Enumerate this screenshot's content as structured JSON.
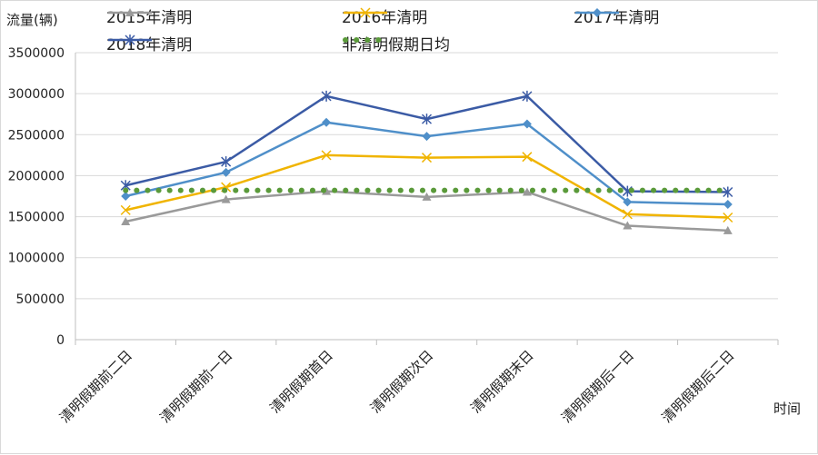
{
  "chart_data": {
    "type": "line",
    "ylabel": "流量(辆)",
    "xlabel": "时间",
    "categories": [
      "清明假期前二日",
      "清明假期前一日",
      "清明假期首日",
      "清明假期次日",
      "清明假期末日",
      "清明假期后一日",
      "清明假期后二日"
    ],
    "ylim": [
      0,
      3500000
    ],
    "yticks": [
      0,
      500000,
      1000000,
      1500000,
      2000000,
      2500000,
      3000000,
      3500000
    ],
    "grid": true,
    "legend": "top",
    "series": [
      {
        "name": "2015年清明",
        "color": "#9a9a9a",
        "marker": "triangle",
        "style": "solid",
        "values": [
          1440000,
          1710000,
          1810000,
          1740000,
          1800000,
          1390000,
          1330000
        ]
      },
      {
        "name": "2016年清明",
        "color": "#f0b400",
        "marker": "x",
        "style": "solid",
        "values": [
          1580000,
          1860000,
          2250000,
          2220000,
          2230000,
          1530000,
          1490000
        ]
      },
      {
        "name": "2017年清明",
        "color": "#4f8fc9",
        "marker": "diamond",
        "style": "solid",
        "values": [
          1750000,
          2040000,
          2650000,
          2480000,
          2630000,
          1680000,
          1650000
        ]
      },
      {
        "name": "2018年清明",
        "color": "#3b5ba5",
        "marker": "star",
        "style": "solid",
        "values": [
          1880000,
          2170000,
          2970000,
          2690000,
          2970000,
          1810000,
          1800000
        ]
      },
      {
        "name": "非清明假期日均",
        "color": "#5a9a3a",
        "marker": "none",
        "style": "dotted",
        "values": [
          1820000,
          1820000,
          1820000,
          1820000,
          1820000,
          1820000,
          1820000
        ]
      }
    ]
  }
}
